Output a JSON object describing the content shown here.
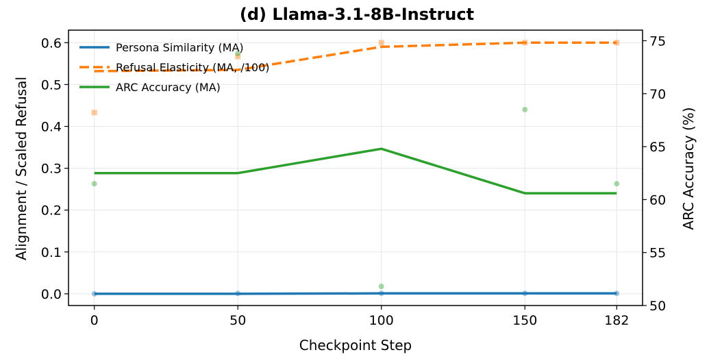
{
  "chart_data": {
    "type": "line",
    "title": "(d) Llama-3.1-8B-Instruct",
    "xlabel": "Checkpoint Step",
    "ylabel_left": "Alignment / Scaled Refusal",
    "ylabel_right": "ARC Accuracy (%)",
    "x_ticks": [
      0,
      50,
      100,
      150,
      182
    ],
    "x_tick_labels": [
      "0",
      "50",
      "100",
      "150",
      "182"
    ],
    "xlim": [
      -9,
      191
    ],
    "ylim_left": [
      -0.028,
      0.63
    ],
    "ylim_right": [
      50.0,
      76.0
    ],
    "y_ticks_left": [
      0.0,
      0.1,
      0.2,
      0.3,
      0.4,
      0.5,
      0.6
    ],
    "y_tick_labels_left": [
      "0.0",
      "0.1",
      "0.2",
      "0.3",
      "0.4",
      "0.5",
      "0.6"
    ],
    "y_ticks_right": [
      50,
      55,
      60,
      65,
      70,
      75
    ],
    "y_tick_labels_right": [
      "50",
      "55",
      "60",
      "65",
      "70",
      "75"
    ],
    "grid": true,
    "legend_position": "top-left",
    "series": [
      {
        "name": "Persona Similarity (MA)",
        "axis": "left",
        "color": "#1f77b4",
        "style": "solid",
        "x": [
          0,
          50,
          100,
          150,
          182
        ],
        "values": [
          0.0,
          0.0,
          0.001,
          0.001,
          0.001
        ],
        "raw_marker": "circle",
        "raw_x": [
          0,
          50,
          100,
          150,
          182
        ],
        "raw_values": [
          0.0,
          0.001,
          0.001,
          0.001,
          0.001
        ]
      },
      {
        "name": "Refusal Elasticity (MA, /100)",
        "axis": "left",
        "color": "#ff7f0e",
        "style": "dashed",
        "x": [
          0,
          50,
          100,
          150,
          182
        ],
        "values": [
          0.532,
          0.535,
          0.59,
          0.6,
          0.6
        ],
        "raw_marker": "square",
        "raw_x": [
          0,
          50,
          100,
          150,
          182
        ],
        "raw_values": [
          0.433,
          0.567,
          0.6,
          0.6,
          0.6
        ]
      },
      {
        "name": "ARC Accuracy (MA)",
        "axis": "right",
        "color": "#2ca02c",
        "style": "solid",
        "x": [
          0,
          50,
          100,
          150,
          182
        ],
        "values": [
          62.5,
          62.5,
          64.8,
          60.6,
          60.6
        ],
        "raw_marker": "circle",
        "raw_x": [
          0,
          50,
          100,
          150,
          182
        ],
        "raw_values": [
          61.5,
          73.8,
          51.8,
          68.5,
          61.5
        ]
      }
    ]
  }
}
